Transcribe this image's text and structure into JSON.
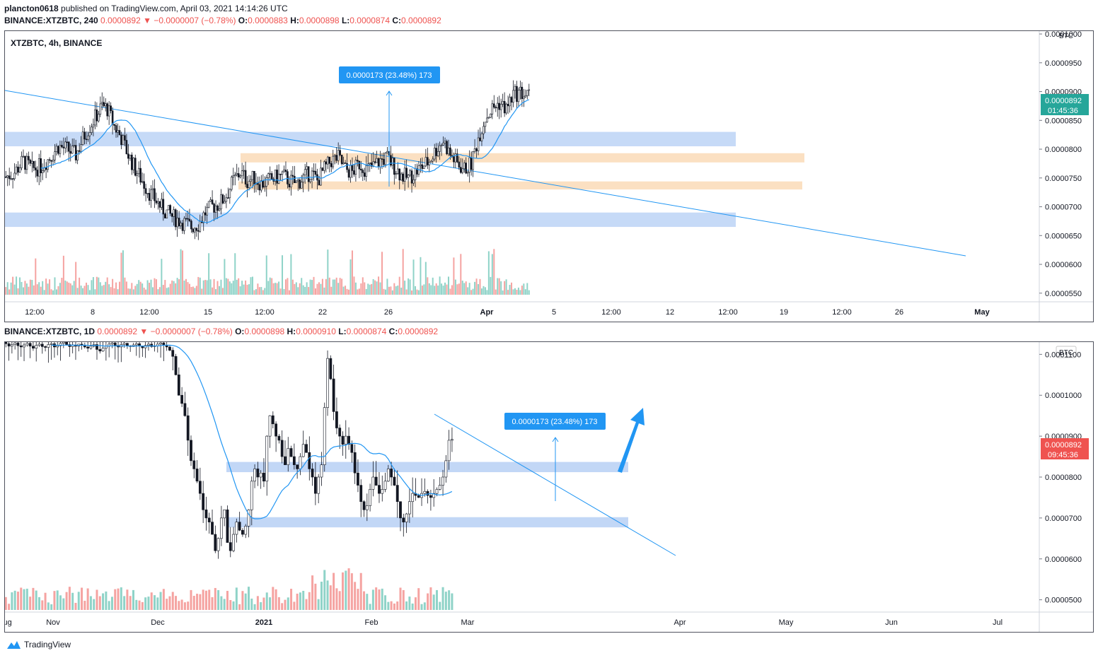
{
  "header": {
    "publisher": "plancton0618",
    "published_text": "published on TradingView.com, April 03, 2021 14:14:26 UTC",
    "top_symbol": "BINANCE:XTZBTC, 240",
    "top_last": "0.0000892",
    "top_change": "−0.0000007 (−0.78%)",
    "top_o_label": "O:",
    "top_o": "0.0000883",
    "top_h_label": "H:",
    "top_h": "0.0000898",
    "top_l_label": "L:",
    "top_l": "0.0000874",
    "top_c_label": "C:",
    "top_c": "0.0000892",
    "bottom_symbol": "BINANCE:XTZBTC, 1D",
    "bottom_last": "0.0000892",
    "bottom_change": "−0.0000007 (−0.78%)",
    "bottom_o_label": "O:",
    "bottom_o": "0.0000898",
    "bottom_h_label": "H:",
    "bottom_h": "0.0000910",
    "bottom_l_label": "L:",
    "bottom_l": "0.0000874",
    "bottom_c_label": "C:",
    "bottom_c": "0.0000892",
    "down_arrow": "▼"
  },
  "footer": {
    "brand": "TradingView"
  },
  "colors": {
    "up": "#26a69a",
    "down": "#ef5350",
    "ma": "#2196f3",
    "blue_zone": "#b3cdf4",
    "orange_zone": "#f9d5ad",
    "label_bg": "#2196f3"
  },
  "chart_data": [
    {
      "type": "candlestick",
      "symbol": "XTZBTC, 4h, BINANCE",
      "currency": "BTC",
      "y_ticks": [
        "0.0001000",
        "0.0000950",
        "0.0000900",
        "0.0000850",
        "0.0000800",
        "0.0000750",
        "0.0000700",
        "0.0000650",
        "0.0000600",
        "0.0000550"
      ],
      "x_ticks": [
        "12:00",
        "8",
        "12:00",
        "15",
        "12:00",
        "22",
        "26",
        "Apr",
        "5",
        "12:00",
        "12",
        "12:00",
        "19",
        "12:00",
        "26",
        "May"
      ],
      "ylim": [
        5.35e-05,
        0.0001005
      ],
      "last_price_label": "0.0000892",
      "countdown": "01:45:36",
      "measure_label": "0.0000173 (23.48%) 173",
      "zones": [
        {
          "color": "blue",
          "from": 8.05e-05,
          "to": 8.3e-05
        },
        {
          "color": "orange",
          "from": 7.77e-05,
          "to": 7.93e-05
        },
        {
          "color": "orange",
          "from": 7.3e-05,
          "to": 7.44e-05
        },
        {
          "color": "blue",
          "from": 6.65e-05,
          "to": 6.9e-05
        }
      ],
      "close_path": [
        [
          0,
          7.52e-05
        ],
        [
          5,
          7.6e-05
        ],
        [
          10,
          7.8e-05
        ],
        [
          15,
          7.65e-05
        ],
        [
          20,
          7.7e-05
        ],
        [
          25,
          7.85e-05
        ],
        [
          30,
          8.05e-05
        ],
        [
          35,
          8e-05
        ],
        [
          40,
          7.9e-05
        ],
        [
          45,
          8.25e-05
        ],
        [
          50,
          8.5e-05
        ],
        [
          55,
          8.75e-05
        ],
        [
          58,
          8.7e-05
        ],
        [
          62,
          8.4e-05
        ],
        [
          66,
          8.2e-05
        ],
        [
          70,
          7.9e-05
        ],
        [
          74,
          7.65e-05
        ],
        [
          78,
          7.45e-05
        ],
        [
          82,
          7.25e-05
        ],
        [
          86,
          7.1e-05
        ],
        [
          90,
          6.95e-05
        ],
        [
          94,
          6.85e-05
        ],
        [
          98,
          6.78e-05
        ],
        [
          102,
          6.72e-05
        ],
        [
          106,
          6.65e-05
        ],
        [
          110,
          6.7e-05
        ],
        [
          114,
          6.9e-05
        ],
        [
          118,
          7e-05
        ],
        [
          122,
          7.05e-05
        ],
        [
          126,
          7.2e-05
        ],
        [
          130,
          7.45e-05
        ],
        [
          134,
          7.6e-05
        ],
        [
          138,
          7.45e-05
        ],
        [
          142,
          7.5e-05
        ],
        [
          146,
          7.4e-05
        ],
        [
          150,
          7.45e-05
        ],
        [
          154,
          7.5e-05
        ],
        [
          158,
          7.55e-05
        ],
        [
          162,
          7.45e-05
        ],
        [
          166,
          7.4e-05
        ],
        [
          170,
          7.5e-05
        ],
        [
          174,
          7.6e-05
        ],
        [
          178,
          7.45e-05
        ],
        [
          182,
          7.65e-05
        ],
        [
          186,
          7.8e-05
        ],
        [
          190,
          7.85e-05
        ],
        [
          194,
          7.65e-05
        ],
        [
          198,
          7.6e-05
        ],
        [
          202,
          7.75e-05
        ],
        [
          206,
          7.65e-05
        ],
        [
          210,
          7.7e-05
        ],
        [
          214,
          7.8e-05
        ],
        [
          218,
          7.85e-05
        ],
        [
          222,
          7.7e-05
        ],
        [
          226,
          7.55e-05
        ],
        [
          230,
          7.5e-05
        ],
        [
          234,
          7.6e-05
        ],
        [
          238,
          7.7e-05
        ],
        [
          242,
          7.8e-05
        ],
        [
          246,
          8e-05
        ],
        [
          250,
          8.15e-05
        ],
        [
          254,
          7.9e-05
        ],
        [
          258,
          7.75e-05
        ],
        [
          262,
          7.65e-05
        ],
        [
          266,
          7.75e-05
        ],
        [
          270,
          8.2e-05
        ],
        [
          274,
          8.55e-05
        ],
        [
          278,
          8.7e-05
        ],
        [
          282,
          8.8e-05
        ],
        [
          286,
          8.7e-05
        ],
        [
          290,
          8.95e-05
        ],
        [
          294,
          8.98e-05
        ],
        [
          298,
          8.92e-05
        ]
      ],
      "n_candles": 300
    },
    {
      "type": "candlestick",
      "symbol": "BINANCE:XTZBTC, 1D",
      "currency": "BTC",
      "y_ticks": [
        "0.0001100",
        "0.0001000",
        "0.0000900",
        "0.0000800",
        "0.0000700",
        "0.0000600",
        "0.0000500"
      ],
      "x_ticks": [
        "Nov",
        "Dec",
        "2021",
        "Feb",
        "Mar",
        "Apr",
        "May",
        "Jun",
        "Jul",
        "Aug"
      ],
      "ylim": [
        4.7e-05,
        0.000113
      ],
      "last_price_label": "0.0000892",
      "countdown": "09:45:36",
      "measure_label": "0.0000173 (23.48%) 173",
      "zones": [
        {
          "color": "blue",
          "from": 8.12e-05,
          "to": 8.37e-05
        },
        {
          "color": "blue",
          "from": 6.77e-05,
          "to": 7.02e-05
        }
      ],
      "closes": [
        0.000112,
        0.0001125,
        0.0001118,
        0.0001122,
        0.000113,
        0.0001126,
        0.000112,
        0.0001124,
        0.0001128,
        0.0001121,
        0.0001118,
        0.0001123,
        0.0001127,
        0.000112,
        0.0001115,
        0.0001122,
        0.0001125,
        0.0001119,
        0.0001117,
        0.0001124,
        0.0001126,
        0.0001118,
        0.0001121,
        0.0001127,
        0.000113,
        0.0001124,
        0.0001119,
        0.0001123,
        0.000112,
        0.0001125,
        0.0001122,
        0.0001118,
        0.0001115,
        0.000112,
        0.0001124,
        0.0001112,
        0.0001108,
        0.0001115,
        0.000112,
        0.0001125,
        0.0001128,
        0.0001122,
        0.0001118,
        0.0001124,
        0.0001127,
        0.0001121,
        0.0001119,
        0.0001123,
        0.0001126,
        0.000112,
        0.0001116,
        0.0001122,
        0.0001125,
        0.0001119,
        0.0001121,
        0.0001125,
        0.0001128,
        0.0001122,
        0.0001118,
        0.000111,
        0.0001095,
        0.000105,
        0.0001,
        9.8e-05,
        9.5e-05,
        8.9e-05,
        8.4e-05,
        8.2e-05,
        7.9e-05,
        7.6e-05,
        7.2e-05,
        7e-05,
        6.9e-05,
        6.6e-05,
        6.2e-05,
        6.5e-05,
        7e-05,
        7.2e-05,
        6.4e-05,
        6.2e-05,
        6.6e-05,
        6.9e-05,
        6.7e-05,
        6.6e-05,
        6.8e-05,
        7.2e-05,
        7.9e-05,
        8.2e-05,
        8e-05,
        8.1e-05,
        7.9e-05,
        9e-05,
        9.5e-05,
        9.3e-05,
        9e-05,
        8.9e-05,
        8.5e-05,
        8.3e-05,
        8.7e-05,
        8.5e-05,
        8.3e-05,
        8.2e-05,
        8.5e-05,
        8.8e-05,
        8.6e-05,
        8.2e-05,
        8e-05,
        7.6e-05,
        8e-05,
        8.3e-05,
        9.7e-05,
        0.000109,
        0.000104,
        9.6e-05,
        9.2e-05,
        9e-05,
        8.8e-05,
        9e-05,
        8.8e-05,
        8.6e-05,
        8.1e-05,
        7.8e-05,
        7.4e-05,
        7.2e-05,
        7.3e-05,
        7.7e-05,
        8e-05,
        7.8e-05,
        7.6e-05,
        7.7e-05,
        7.9e-05,
        8.2e-05,
        8e-05,
        7.8e-05,
        7.4e-05,
        7e-05,
        6.9e-05,
        7.1e-05,
        7.4e-05,
        7.6e-05,
        7.55e-05,
        7.5e-05,
        7.6e-05,
        7.65e-05,
        7.55e-05,
        7.5e-05,
        7.6e-05,
        7.7e-05,
        7.8e-05,
        8e-05,
        8.4e-05,
        8.9e-05,
        8.92e-05
      ],
      "first_visible_index": 35
    }
  ]
}
